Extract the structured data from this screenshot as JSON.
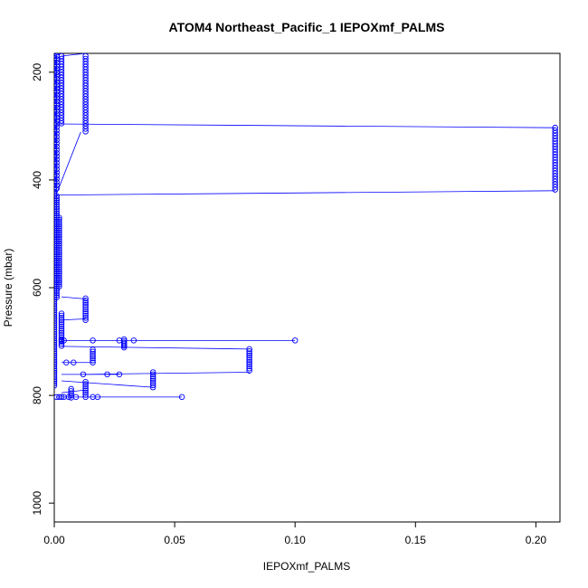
{
  "chart_data": {
    "type": "scatter",
    "title": "ATOM4 Northeast_Pacific_1 IEPOXmf_PALMS",
    "xlabel": "IEPOXmf_PALMS",
    "ylabel": "Pressure (mbar)",
    "xlim": [
      0.0,
      0.21
    ],
    "ylim": [
      1035,
      165
    ],
    "y_reversed": true,
    "grid": false,
    "colors": {
      "series": "#0000ff",
      "axis": "#000000"
    },
    "x_ticks": [
      {
        "value": 0.0,
        "label": "0.00"
      },
      {
        "value": 0.05,
        "label": "0.05"
      },
      {
        "value": 0.1,
        "label": "0.10"
      },
      {
        "value": 0.15,
        "label": "0.15"
      },
      {
        "value": 0.2,
        "label": "0.20"
      }
    ],
    "y_ticks": [
      {
        "value": 200,
        "label": "200"
      },
      {
        "value": 400,
        "label": "400"
      },
      {
        "value": 600,
        "label": "600"
      },
      {
        "value": 800,
        "label": "800"
      },
      {
        "value": 1000,
        "label": "1000"
      }
    ],
    "clusters": [
      {
        "x": 0.0,
        "p_start": 170,
        "p_end": 785,
        "step": 4
      },
      {
        "x": 0.001,
        "p_start": 170,
        "p_end": 420,
        "step": 6
      },
      {
        "x": 0.001,
        "p_start": 430,
        "p_end": 620,
        "step": 4
      },
      {
        "x": 0.002,
        "p_start": 470,
        "p_end": 600,
        "step": 4
      },
      {
        "x": 0.003,
        "p_start": 170,
        "p_end": 295,
        "step": 5
      },
      {
        "x": 0.013,
        "p_start": 170,
        "p_end": 310,
        "step": 5
      },
      {
        "x": 0.208,
        "p_start": 303,
        "p_end": 420,
        "step": 5
      },
      {
        "x": 0.003,
        "p_start": 648,
        "p_end": 710,
        "step": 4
      },
      {
        "x": 0.013,
        "p_start": 620,
        "p_end": 662,
        "step": 4
      },
      {
        "x": 0.016,
        "p_start": 715,
        "p_end": 740,
        "step": 4
      },
      {
        "x": 0.029,
        "p_start": 696,
        "p_end": 713,
        "step": 3
      },
      {
        "x": 0.081,
        "p_start": 714,
        "p_end": 757,
        "step": 4
      },
      {
        "x": 0.041,
        "p_start": 757,
        "p_end": 785,
        "step": 4
      },
      {
        "x": 0.013,
        "p_start": 775,
        "p_end": 803,
        "step": 4
      },
      {
        "x": 0.007,
        "p_start": 788,
        "p_end": 805,
        "step": 4
      }
    ],
    "points": [
      {
        "x": 0.1,
        "y": 698
      },
      {
        "x": 0.033,
        "y": 698
      },
      {
        "x": 0.027,
        "y": 698
      },
      {
        "x": 0.016,
        "y": 698
      },
      {
        "x": 0.004,
        "y": 698
      },
      {
        "x": 0.003,
        "y": 698
      },
      {
        "x": 0.012,
        "y": 761
      },
      {
        "x": 0.022,
        "y": 761
      },
      {
        "x": 0.027,
        "y": 761
      },
      {
        "x": 0.005,
        "y": 739
      },
      {
        "x": 0.008,
        "y": 739
      },
      {
        "x": 0.053,
        "y": 803
      },
      {
        "x": 0.018,
        "y": 803
      },
      {
        "x": 0.016,
        "y": 803
      },
      {
        "x": 0.009,
        "y": 803
      },
      {
        "x": 0.006,
        "y": 803
      },
      {
        "x": 0.004,
        "y": 803
      },
      {
        "x": 0.003,
        "y": 803
      },
      {
        "x": 0.002,
        "y": 803
      },
      {
        "x": 0.001,
        "y": 803
      }
    ],
    "lines": [
      [
        0.0,
        170,
        0.003,
        165
      ],
      [
        0.003,
        170,
        0.013,
        165
      ],
      [
        0.001,
        296,
        0.208,
        303
      ],
      [
        0.001,
        428,
        0.208,
        420
      ],
      [
        0.001,
        425,
        0.011,
        311
      ],
      [
        0.003,
        617,
        0.013,
        621
      ],
      [
        0.003,
        660,
        0.013,
        658
      ],
      [
        0.003,
        698,
        0.1,
        698
      ],
      [
        0.003,
        709,
        0.081,
        714
      ],
      [
        0.003,
        739,
        0.016,
        739
      ],
      [
        0.003,
        761,
        0.027,
        761
      ],
      [
        0.011,
        761,
        0.081,
        757
      ],
      [
        0.003,
        773,
        0.041,
        785
      ],
      [
        0.003,
        795,
        0.013,
        790
      ],
      [
        0.001,
        803,
        0.053,
        803
      ]
    ]
  }
}
